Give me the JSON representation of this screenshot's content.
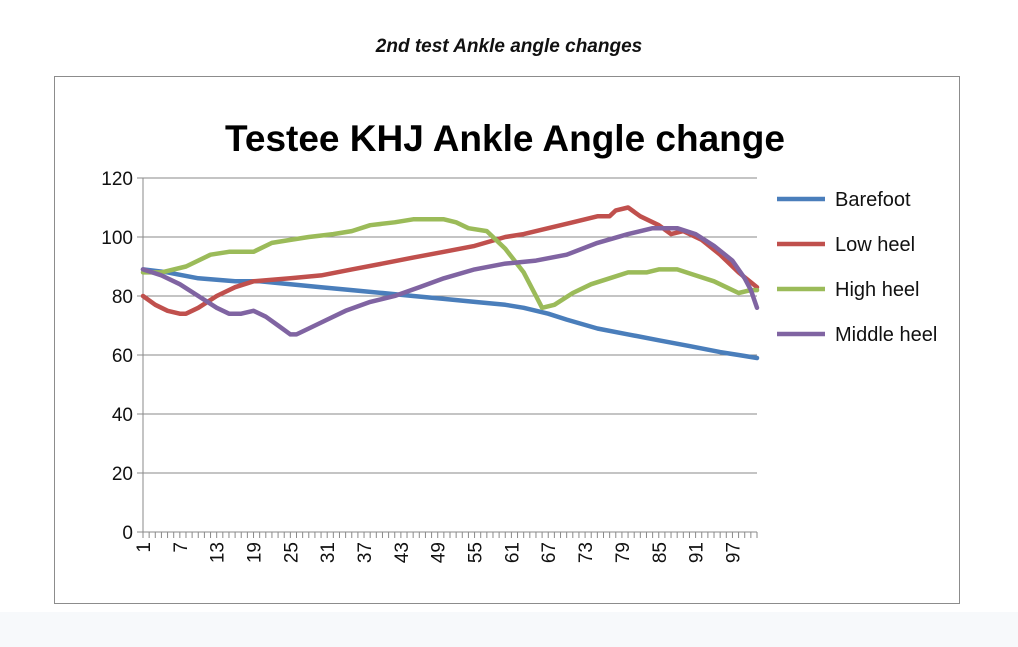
{
  "caption": "2nd test Ankle angle changes",
  "chart_data": {
    "type": "line",
    "title": "Testee KHJ Ankle Angle change",
    "xlabel": "",
    "ylabel": "",
    "ylim": [
      0,
      120
    ],
    "yticks": [
      0,
      20,
      40,
      60,
      80,
      100,
      120
    ],
    "xlim": [
      1,
      101
    ],
    "xtick_labels": [
      "1",
      "7",
      "13",
      "19",
      "25",
      "31",
      "37",
      "43",
      "49",
      "55",
      "61",
      "67",
      "73",
      "79",
      "85",
      "91",
      "97"
    ],
    "grid": "horizontal",
    "legend_position": "right",
    "series": [
      {
        "name": "Barefoot",
        "color": "#4a7ebb",
        "points": [
          [
            1,
            89
          ],
          [
            5,
            88
          ],
          [
            10,
            86
          ],
          [
            16,
            85
          ],
          [
            20,
            85
          ],
          [
            25,
            84
          ],
          [
            30,
            83
          ],
          [
            35,
            82
          ],
          [
            40,
            81
          ],
          [
            45,
            80
          ],
          [
            50,
            79
          ],
          [
            55,
            78
          ],
          [
            60,
            77
          ],
          [
            63,
            76
          ],
          [
            67,
            74
          ],
          [
            70,
            72
          ],
          [
            75,
            69
          ],
          [
            80,
            67
          ],
          [
            85,
            65
          ],
          [
            90,
            63
          ],
          [
            95,
            61
          ],
          [
            98,
            60
          ],
          [
            101,
            59
          ]
        ]
      },
      {
        "name": "Low heel",
        "color": "#c0504d",
        "points": [
          [
            1,
            80
          ],
          [
            3,
            77
          ],
          [
            5,
            75
          ],
          [
            7,
            74
          ],
          [
            8,
            74
          ],
          [
            10,
            76
          ],
          [
            13,
            80
          ],
          [
            16,
            83
          ],
          [
            19,
            85
          ],
          [
            25,
            86
          ],
          [
            30,
            87
          ],
          [
            35,
            89
          ],
          [
            40,
            91
          ],
          [
            45,
            93
          ],
          [
            50,
            95
          ],
          [
            55,
            97
          ],
          [
            60,
            100
          ],
          [
            63,
            101
          ],
          [
            67,
            103
          ],
          [
            71,
            105
          ],
          [
            75,
            107
          ],
          [
            77,
            107
          ],
          [
            78,
            109
          ],
          [
            80,
            110
          ],
          [
            82,
            107
          ],
          [
            85,
            104
          ],
          [
            87,
            101
          ],
          [
            89,
            102
          ],
          [
            92,
            99
          ],
          [
            95,
            94
          ],
          [
            98,
            88
          ],
          [
            101,
            83
          ]
        ]
      },
      {
        "name": "High heel",
        "color": "#9bbb59",
        "points": [
          [
            1,
            88
          ],
          [
            4,
            88
          ],
          [
            8,
            90
          ],
          [
            12,
            94
          ],
          [
            15,
            95
          ],
          [
            19,
            95
          ],
          [
            22,
            98
          ],
          [
            25,
            99
          ],
          [
            28,
            100
          ],
          [
            32,
            101
          ],
          [
            35,
            102
          ],
          [
            38,
            104
          ],
          [
            42,
            105
          ],
          [
            45,
            106
          ],
          [
            50,
            106
          ],
          [
            52,
            105
          ],
          [
            54,
            103
          ],
          [
            57,
            102
          ],
          [
            60,
            96
          ],
          [
            63,
            88
          ],
          [
            65,
            80
          ],
          [
            66,
            76
          ],
          [
            68,
            77
          ],
          [
            71,
            81
          ],
          [
            74,
            84
          ],
          [
            77,
            86
          ],
          [
            80,
            88
          ],
          [
            83,
            88
          ],
          [
            85,
            89
          ],
          [
            88,
            89
          ],
          [
            91,
            87
          ],
          [
            94,
            85
          ],
          [
            96,
            83
          ],
          [
            98,
            81
          ],
          [
            100,
            82
          ],
          [
            101,
            82
          ]
        ]
      },
      {
        "name": "Middle heel",
        "color": "#8064a2",
        "points": [
          [
            1,
            89
          ],
          [
            4,
            87
          ],
          [
            7,
            84
          ],
          [
            10,
            80
          ],
          [
            13,
            76
          ],
          [
            15,
            74
          ],
          [
            17,
            74
          ],
          [
            19,
            75
          ],
          [
            21,
            73
          ],
          [
            23,
            70
          ],
          [
            25,
            67
          ],
          [
            26,
            67
          ],
          [
            28,
            69
          ],
          [
            31,
            72
          ],
          [
            34,
            75
          ],
          [
            38,
            78
          ],
          [
            42,
            80
          ],
          [
            46,
            83
          ],
          [
            50,
            86
          ],
          [
            55,
            89
          ],
          [
            60,
            91
          ],
          [
            65,
            92
          ],
          [
            70,
            94
          ],
          [
            75,
            98
          ],
          [
            80,
            101
          ],
          [
            84,
            103
          ],
          [
            88,
            103
          ],
          [
            91,
            101
          ],
          [
            94,
            97
          ],
          [
            97,
            92
          ],
          [
            99,
            86
          ],
          [
            100,
            82
          ],
          [
            101,
            76
          ]
        ]
      }
    ]
  }
}
